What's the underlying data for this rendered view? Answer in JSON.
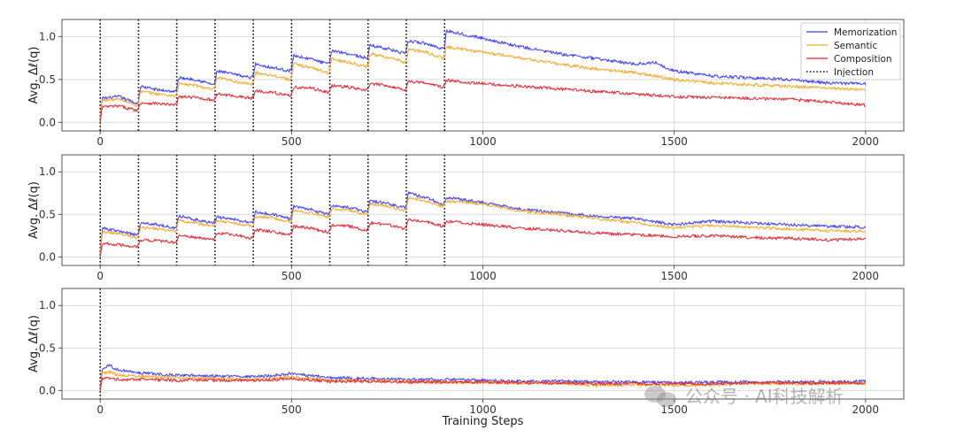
{
  "chart_data": [
    {
      "type": "line",
      "panel": 1,
      "ylabel": "Avg. Δℓ(q)",
      "xlabel": "",
      "xlim": [
        -100,
        2100
      ],
      "ylim": [
        -0.1,
        1.2
      ],
      "xticks": [
        0,
        500,
        1000,
        1500,
        2000
      ],
      "yticks": [
        0.0,
        0.5,
        1.0
      ],
      "grid": true,
      "legend": "top-right",
      "injections": [
        0,
        100,
        200,
        300,
        400,
        500,
        600,
        700,
        800,
        900
      ],
      "series": [
        {
          "name": "Memorization",
          "color": "#3a3aff",
          "x": [
            0,
            5,
            50,
            95,
            100,
            105,
            150,
            195,
            200,
            205,
            250,
            295,
            300,
            305,
            350,
            395,
            400,
            405,
            450,
            495,
            500,
            505,
            550,
            595,
            600,
            605,
            650,
            695,
            700,
            705,
            750,
            795,
            800,
            805,
            850,
            895,
            900,
            905,
            1000,
            1100,
            1200,
            1300,
            1400,
            1450,
            1500,
            1600,
            1700,
            1800,
            1850,
            1900,
            2000
          ],
          "y": [
            0.0,
            0.28,
            0.3,
            0.22,
            0.24,
            0.42,
            0.38,
            0.36,
            0.38,
            0.52,
            0.5,
            0.44,
            0.46,
            0.6,
            0.56,
            0.52,
            0.55,
            0.68,
            0.64,
            0.6,
            0.62,
            0.78,
            0.74,
            0.68,
            0.7,
            0.84,
            0.8,
            0.75,
            0.77,
            0.9,
            0.86,
            0.8,
            0.82,
            0.95,
            0.92,
            0.86,
            0.88,
            1.07,
            0.98,
            0.88,
            0.8,
            0.74,
            0.68,
            0.7,
            0.6,
            0.54,
            0.52,
            0.5,
            0.48,
            0.46,
            0.45
          ]
        },
        {
          "name": "Semantic",
          "color": "#f5a623",
          "x": [
            0,
            5,
            50,
            95,
            100,
            105,
            150,
            195,
            200,
            205,
            250,
            295,
            300,
            305,
            350,
            395,
            400,
            405,
            450,
            495,
            500,
            505,
            550,
            595,
            600,
            605,
            650,
            695,
            700,
            705,
            750,
            795,
            800,
            805,
            850,
            895,
            900,
            905,
            1000,
            1100,
            1200,
            1300,
            1400,
            1500,
            1600,
            1700,
            1800,
            1900,
            2000
          ],
          "y": [
            0.0,
            0.26,
            0.27,
            0.2,
            0.22,
            0.36,
            0.33,
            0.31,
            0.33,
            0.45,
            0.43,
            0.38,
            0.4,
            0.52,
            0.48,
            0.44,
            0.46,
            0.58,
            0.55,
            0.5,
            0.52,
            0.68,
            0.64,
            0.58,
            0.6,
            0.74,
            0.7,
            0.65,
            0.67,
            0.8,
            0.76,
            0.7,
            0.72,
            0.85,
            0.82,
            0.75,
            0.77,
            0.88,
            0.82,
            0.75,
            0.68,
            0.62,
            0.58,
            0.5,
            0.46,
            0.44,
            0.42,
            0.4,
            0.38
          ]
        },
        {
          "name": "Composition",
          "color": "#e8202a",
          "x": [
            0,
            5,
            50,
            95,
            100,
            105,
            150,
            195,
            200,
            205,
            250,
            295,
            300,
            305,
            350,
            395,
            400,
            405,
            450,
            495,
            500,
            505,
            550,
            595,
            600,
            605,
            650,
            695,
            700,
            705,
            750,
            795,
            800,
            805,
            850,
            895,
            900,
            905,
            1000,
            1100,
            1200,
            1300,
            1400,
            1500,
            1600,
            1700,
            1800,
            1900,
            2000
          ],
          "y": [
            0.0,
            0.18,
            0.19,
            0.14,
            0.16,
            0.23,
            0.22,
            0.2,
            0.22,
            0.3,
            0.29,
            0.26,
            0.28,
            0.33,
            0.31,
            0.28,
            0.3,
            0.37,
            0.35,
            0.31,
            0.33,
            0.41,
            0.4,
            0.35,
            0.37,
            0.43,
            0.41,
            0.37,
            0.39,
            0.45,
            0.43,
            0.38,
            0.4,
            0.48,
            0.46,
            0.41,
            0.43,
            0.49,
            0.45,
            0.42,
            0.39,
            0.36,
            0.33,
            0.3,
            0.29,
            0.28,
            0.27,
            0.24,
            0.2
          ]
        }
      ]
    },
    {
      "type": "line",
      "panel": 2,
      "ylabel": "Avg. Δℓ(q)",
      "xlabel": "",
      "xlim": [
        -100,
        2100
      ],
      "ylim": [
        -0.1,
        1.2
      ],
      "xticks": [
        0,
        500,
        1000,
        1500,
        2000
      ],
      "yticks": [
        0.0,
        0.5,
        1.0
      ],
      "grid": true,
      "injections": [
        0,
        100,
        200,
        300,
        400,
        500,
        600,
        700,
        800,
        900
      ],
      "series": [
        {
          "name": "Memorization",
          "color": "#3a3aff",
          "x": [
            0,
            5,
            50,
            95,
            100,
            105,
            150,
            195,
            200,
            205,
            250,
            295,
            300,
            305,
            350,
            395,
            400,
            405,
            450,
            495,
            500,
            505,
            550,
            595,
            600,
            605,
            650,
            695,
            700,
            705,
            750,
            795,
            800,
            805,
            850,
            895,
            900,
            905,
            1000,
            1100,
            1200,
            1300,
            1400,
            1500,
            1600,
            1700,
            1800,
            1900,
            2000
          ],
          "y": [
            0.0,
            0.34,
            0.3,
            0.26,
            0.28,
            0.4,
            0.38,
            0.34,
            0.36,
            0.48,
            0.44,
            0.4,
            0.42,
            0.47,
            0.44,
            0.4,
            0.42,
            0.53,
            0.5,
            0.45,
            0.47,
            0.6,
            0.56,
            0.5,
            0.52,
            0.6,
            0.58,
            0.53,
            0.55,
            0.66,
            0.63,
            0.58,
            0.6,
            0.75,
            0.7,
            0.62,
            0.64,
            0.7,
            0.64,
            0.56,
            0.52,
            0.48,
            0.45,
            0.38,
            0.42,
            0.4,
            0.38,
            0.36,
            0.35
          ]
        },
        {
          "name": "Semantic",
          "color": "#f5a623",
          "x": [
            0,
            5,
            50,
            95,
            100,
            105,
            150,
            195,
            200,
            205,
            250,
            295,
            300,
            305,
            350,
            395,
            400,
            405,
            450,
            495,
            500,
            505,
            550,
            595,
            600,
            605,
            650,
            695,
            700,
            705,
            750,
            795,
            800,
            805,
            850,
            895,
            900,
            905,
            1000,
            1100,
            1200,
            1300,
            1400,
            1500,
            1600,
            1700,
            1800,
            1900,
            2000
          ],
          "y": [
            0.0,
            0.3,
            0.27,
            0.23,
            0.25,
            0.35,
            0.33,
            0.3,
            0.32,
            0.43,
            0.4,
            0.36,
            0.38,
            0.43,
            0.4,
            0.36,
            0.38,
            0.48,
            0.46,
            0.41,
            0.43,
            0.55,
            0.52,
            0.47,
            0.49,
            0.57,
            0.55,
            0.5,
            0.52,
            0.62,
            0.6,
            0.55,
            0.57,
            0.7,
            0.66,
            0.59,
            0.61,
            0.66,
            0.62,
            0.54,
            0.5,
            0.45,
            0.4,
            0.34,
            0.37,
            0.35,
            0.33,
            0.31,
            0.3
          ]
        },
        {
          "name": "Composition",
          "color": "#e8202a",
          "x": [
            0,
            5,
            50,
            95,
            100,
            105,
            150,
            195,
            200,
            205,
            250,
            295,
            300,
            305,
            350,
            395,
            400,
            405,
            450,
            495,
            500,
            505,
            550,
            595,
            600,
            605,
            650,
            695,
            700,
            705,
            750,
            795,
            800,
            805,
            850,
            895,
            900,
            905,
            1000,
            1100,
            1200,
            1300,
            1400,
            1500,
            1600,
            1700,
            1800,
            1900,
            2000
          ],
          "y": [
            0.0,
            0.16,
            0.14,
            0.12,
            0.14,
            0.2,
            0.19,
            0.17,
            0.19,
            0.25,
            0.23,
            0.2,
            0.22,
            0.28,
            0.26,
            0.22,
            0.24,
            0.32,
            0.3,
            0.26,
            0.28,
            0.36,
            0.34,
            0.29,
            0.31,
            0.38,
            0.36,
            0.31,
            0.33,
            0.4,
            0.38,
            0.33,
            0.35,
            0.44,
            0.42,
            0.36,
            0.38,
            0.42,
            0.38,
            0.34,
            0.31,
            0.28,
            0.26,
            0.24,
            0.25,
            0.23,
            0.22,
            0.2,
            0.21
          ]
        }
      ]
    },
    {
      "type": "line",
      "panel": 3,
      "ylabel": "Avg. Δℓ(q)",
      "xlabel": "Training Steps",
      "xlim": [
        -100,
        2100
      ],
      "ylim": [
        -0.1,
        1.2
      ],
      "xticks": [
        0,
        500,
        1000,
        1500,
        2000
      ],
      "yticks": [
        0.0,
        0.5,
        1.0
      ],
      "grid": true,
      "injections": [
        0
      ],
      "series": [
        {
          "name": "Memorization",
          "color": "#3a3aff",
          "x": [
            0,
            5,
            25,
            50,
            100,
            200,
            300,
            400,
            500,
            600,
            700,
            800,
            900,
            1000,
            1100,
            1200,
            1300,
            1400,
            1500,
            1600,
            1700,
            1800,
            1900,
            2000
          ],
          "y": [
            0.0,
            0.26,
            0.29,
            0.24,
            0.21,
            0.18,
            0.17,
            0.16,
            0.2,
            0.15,
            0.14,
            0.13,
            0.13,
            0.12,
            0.11,
            0.11,
            0.1,
            0.1,
            0.09,
            0.1,
            0.1,
            0.1,
            0.1,
            0.11
          ]
        },
        {
          "name": "Semantic",
          "color": "#f5a623",
          "x": [
            0,
            5,
            25,
            50,
            100,
            200,
            300,
            400,
            500,
            600,
            700,
            800,
            900,
            1000,
            1100,
            1200,
            1300,
            1400,
            1500,
            1600,
            1700,
            1800,
            1900,
            2000
          ],
          "y": [
            0.0,
            0.2,
            0.22,
            0.18,
            0.17,
            0.15,
            0.14,
            0.13,
            0.16,
            0.12,
            0.12,
            0.11,
            0.1,
            0.1,
            0.09,
            0.09,
            0.06,
            0.07,
            0.06,
            0.07,
            0.08,
            0.08,
            0.08,
            0.09
          ]
        },
        {
          "name": "Composition",
          "color": "#e8202a",
          "x": [
            0,
            5,
            25,
            50,
            100,
            200,
            300,
            400,
            500,
            600,
            700,
            800,
            900,
            1000,
            1100,
            1200,
            1300,
            1400,
            1500,
            1600,
            1700,
            1800,
            1900,
            2000
          ],
          "y": [
            0.0,
            0.14,
            0.15,
            0.13,
            0.13,
            0.12,
            0.12,
            0.12,
            0.14,
            0.11,
            0.11,
            0.1,
            0.1,
            0.1,
            0.09,
            0.09,
            0.08,
            0.08,
            0.08,
            0.08,
            0.09,
            0.09,
            0.09,
            0.09
          ]
        }
      ]
    }
  ],
  "legend": {
    "items": [
      {
        "label": "Memorization",
        "color": "#3a3aff",
        "style": "solid"
      },
      {
        "label": "Semantic",
        "color": "#f5a623",
        "style": "solid"
      },
      {
        "label": "Composition",
        "color": "#e8202a",
        "style": "solid"
      },
      {
        "label": "Injection",
        "color": "#111111",
        "style": "dotted"
      }
    ]
  },
  "watermark": {
    "text": "公众号 · AI科技解析"
  }
}
